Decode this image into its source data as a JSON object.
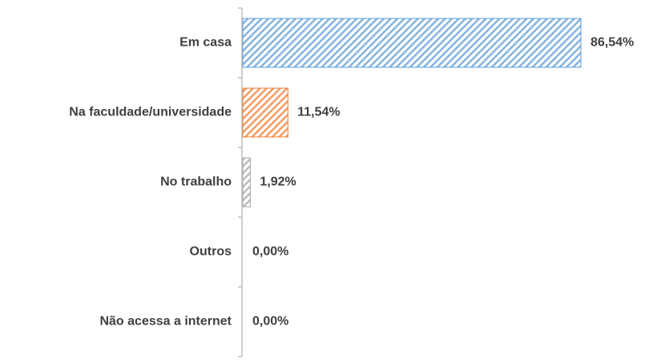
{
  "chart_data": {
    "type": "bar",
    "orientation": "horizontal",
    "categories": [
      "Em casa",
      "Na faculdade/universidade",
      "No trabalho",
      "Outros",
      "Não acessa a internet"
    ],
    "values": [
      86.54,
      11.54,
      1.92,
      0,
      0
    ],
    "value_labels": [
      "86,54%",
      "11,54%",
      "1,92%",
      "0,00%",
      "0,00%"
    ],
    "colors": [
      "#5b9bd5",
      "#ed7d31",
      "#a5a5a5",
      "#ffc000",
      "#4472c4"
    ],
    "pattern": "diagonal-hatch"
  }
}
